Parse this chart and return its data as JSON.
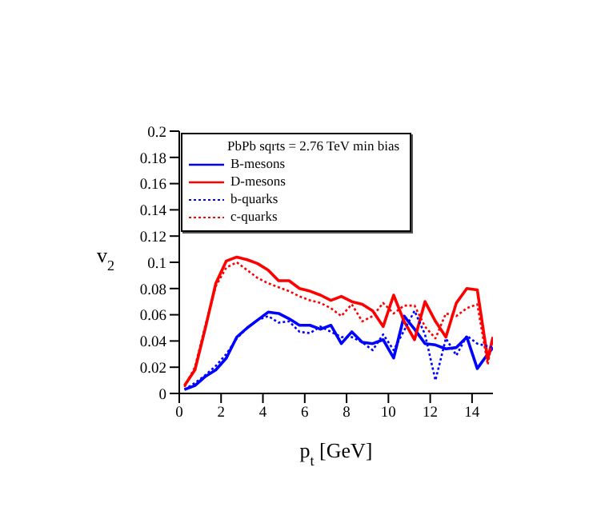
{
  "chart_data": {
    "type": "line",
    "xlabel": "p$_{t}$ [GeV]",
    "ylabel": "v$_{2}$",
    "legend_title": "PbPb sqrts = 2.76 TeV min bias",
    "x": [
      0.25,
      0.75,
      1.25,
      1.75,
      2.25,
      2.75,
      3.25,
      3.75,
      4.25,
      4.75,
      5.25,
      5.75,
      6.25,
      6.75,
      7.25,
      7.75,
      8.25,
      8.75,
      9.25,
      9.75,
      10.25,
      10.75,
      11.25,
      11.75,
      12.25,
      12.75,
      13.25,
      13.75,
      14.25,
      14.75,
      15
    ],
    "series": [
      {
        "name": "B-mesons",
        "color": "#0000ff",
        "line_style": "solid",
        "values": [
          0.003,
          0.006,
          0.013,
          0.018,
          0.027,
          0.043,
          0.05,
          0.056,
          0.062,
          0.061,
          0.057,
          0.052,
          0.052,
          0.049,
          0.052,
          0.038,
          0.047,
          0.039,
          0.038,
          0.041,
          0.027,
          0.059,
          0.049,
          0.038,
          0.037,
          0.034,
          0.035,
          0.043,
          0.019,
          0.03,
          0.035
        ]
      },
      {
        "name": "D-mesons",
        "color": "#ff0000",
        "line_style": "solid",
        "values": [
          0.006,
          0.018,
          0.05,
          0.084,
          0.101,
          0.104,
          0.102,
          0.099,
          0.094,
          0.086,
          0.086,
          0.08,
          0.078,
          0.075,
          0.071,
          0.074,
          0.07,
          0.068,
          0.063,
          0.051,
          0.075,
          0.055,
          0.041,
          0.07,
          0.055,
          0.043,
          0.069,
          0.08,
          0.079,
          0.026,
          0.043
        ]
      },
      {
        "name": "b-quarks",
        "color": "#0000ff",
        "line_style": "dotted",
        "values": [
          0.003,
          0.008,
          0.014,
          0.021,
          0.03,
          0.042,
          0.05,
          0.056,
          0.059,
          0.054,
          0.055,
          0.047,
          0.046,
          0.051,
          0.047,
          0.043,
          0.043,
          0.039,
          0.033,
          0.045,
          0.033,
          0.048,
          0.063,
          0.045,
          0.01,
          0.042,
          0.029,
          0.044,
          0.038,
          0.036,
          0.035
        ]
      },
      {
        "name": "c-quarks",
        "color": "#ff0000",
        "line_style": "dotted",
        "values": [
          0.005,
          0.02,
          0.052,
          0.082,
          0.096,
          0.1,
          0.094,
          0.088,
          0.084,
          0.081,
          0.078,
          0.074,
          0.071,
          0.069,
          0.065,
          0.059,
          0.068,
          0.055,
          0.059,
          0.069,
          0.061,
          0.067,
          0.067,
          0.051,
          0.042,
          0.061,
          0.059,
          0.065,
          0.068,
          0.022,
          0.043
        ]
      }
    ],
    "xlim": [
      0,
      15
    ],
    "xticks": [
      0,
      2,
      4,
      6,
      8,
      10,
      12,
      14
    ],
    "ylim": [
      0,
      0.2
    ],
    "yticks": [
      0,
      0.02,
      0.04,
      0.06,
      0.08,
      0.1,
      0.12,
      0.14,
      0.16,
      0.18,
      0.2
    ],
    "legend": "top left",
    "grid": false,
    "marker": "none"
  }
}
